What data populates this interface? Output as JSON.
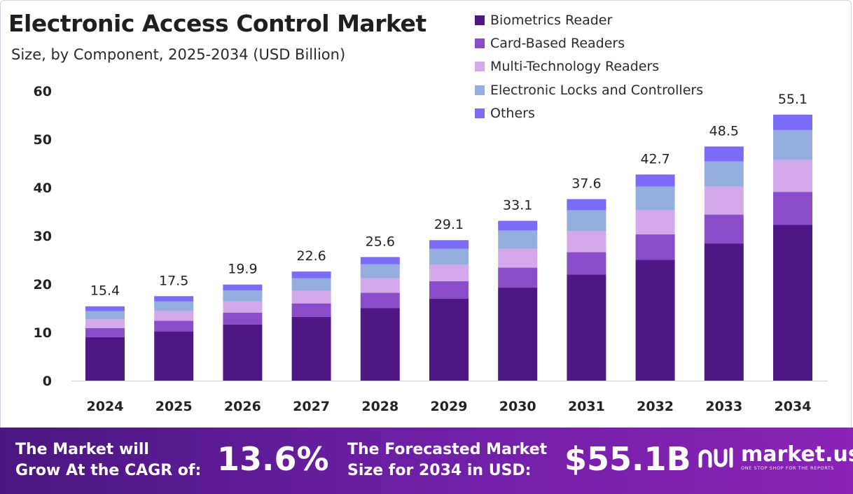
{
  "chart_data": {
    "type": "bar",
    "stacked": true,
    "title": "Electronic Access Control Market",
    "subtitle": "Size, by Component, 2025-2034 (USD Billion)",
    "categories": [
      "2024",
      "2025",
      "2026",
      "2027",
      "2028",
      "2029",
      "2030",
      "2031",
      "2032",
      "2033",
      "2034"
    ],
    "totals": [
      15.4,
      17.5,
      19.9,
      22.6,
      25.6,
      29.1,
      33.1,
      37.6,
      42.7,
      48.5,
      55.1
    ],
    "totals_labels": [
      "15.4",
      "17.5",
      "19.9",
      "22.6",
      "25.6",
      "29.1",
      "33.1",
      "37.6",
      "42.7",
      "48.5",
      "55.1"
    ],
    "series": [
      {
        "name": "Biometrics Reader",
        "color": "#4f1786",
        "values": [
          9.0,
          10.2,
          11.6,
          13.2,
          15.0,
          17.0,
          19.3,
          22.0,
          25.0,
          28.4,
          32.3
        ]
      },
      {
        "name": "Card-Based Readers",
        "color": "#8a4cc9",
        "values": [
          1.9,
          2.2,
          2.5,
          2.8,
          3.2,
          3.6,
          4.1,
          4.6,
          5.3,
          6.0,
          6.8
        ]
      },
      {
        "name": "Multi-Technology Readers",
        "color": "#d3a9ec",
        "values": [
          1.8,
          2.0,
          2.3,
          2.6,
          3.0,
          3.4,
          3.9,
          4.4,
          5.0,
          5.8,
          6.6
        ]
      },
      {
        "name": "Electronic Locks and Controllers",
        "color": "#95aedf",
        "values": [
          1.7,
          2.0,
          2.3,
          2.6,
          2.9,
          3.3,
          3.8,
          4.3,
          4.9,
          5.2,
          6.2
        ]
      },
      {
        "name": "Others",
        "color": "#7a6cf4",
        "values": [
          1.0,
          1.1,
          1.2,
          1.4,
          1.5,
          1.8,
          2.0,
          2.3,
          2.5,
          3.1,
          3.2
        ]
      }
    ],
    "yticks": [
      "0",
      "10",
      "20",
      "30",
      "40",
      "50",
      "60"
    ],
    "ylim": [
      0,
      60
    ],
    "xlabel": "",
    "ylabel": "",
    "grid": false,
    "legend_position": "top-right"
  },
  "banner": {
    "cagr_text": "The Market will\nGrow At the CAGR of:",
    "cagr_value": "13.6%",
    "forecast_text": "The Forecasted Market\nSize for 2034 in USD:",
    "forecast_value": "$55.1B",
    "brand_name": "market.us",
    "brand_tagline": "ONE STOP SHOP FOR THE REPORTS"
  }
}
